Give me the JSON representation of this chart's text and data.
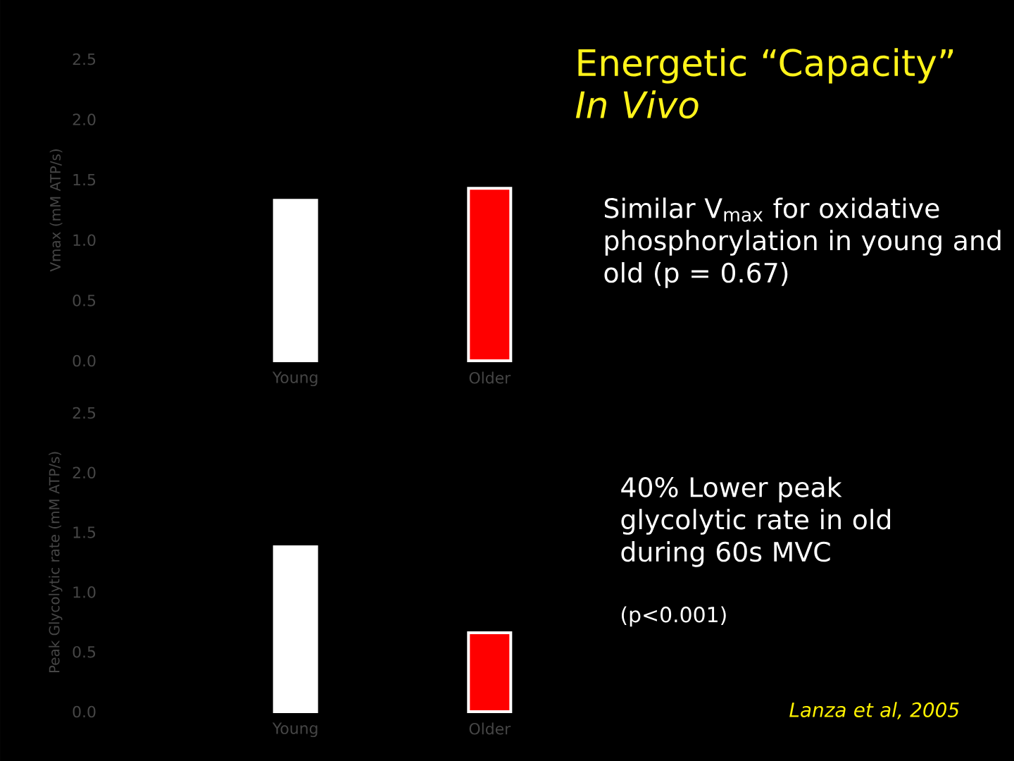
{
  "chart_data": [
    {
      "type": "bar",
      "title": "Energetic “Capacity” *In Vivo*",
      "ylabel": "Vmax (mM ATP/s)",
      "categories": [
        "Young",
        "Older"
      ],
      "values": [
        1.33,
        1.43
      ],
      "colors": [
        "#ffffff",
        "#ff0000"
      ],
      "ylim": [
        0,
        2.5
      ],
      "yticks": [
        {
          "value": 0,
          "label": "0.0"
        },
        {
          "value": 0.5,
          "label": "0.5"
        },
        {
          "value": 1,
          "label": "1.0"
        },
        {
          "value": 1.5,
          "label": "1.5"
        },
        {
          "value": 2,
          "label": "2.0"
        },
        {
          "value": 2.5,
          "label": "2.5"
        }
      ],
      "annotations": [
        "Similar V$_{max}$ for oxidative phosphorylation in young and old (p = 0.67)"
      ]
    },
    {
      "type": "bar",
      "ylabel": "Peak Glycolytic rate (mM ATP/s)",
      "categories": [
        "Young",
        "Older"
      ],
      "values": [
        1.38,
        0.66
      ],
      "colors": [
        "#ffffff",
        "#ff0000"
      ],
      "ylim": [
        0,
        2.5
      ],
      "yticks": [
        {
          "value": 0,
          "label": "0.0"
        },
        {
          "value": 0.5,
          "label": "0.5"
        },
        {
          "value": 1,
          "label": "1.0"
        },
        {
          "value": 1.5,
          "label": "1.5"
        },
        {
          "value": 2,
          "label": "2.0"
        },
        {
          "value": 2.5,
          "label": "2.5"
        }
      ],
      "annotations": [
        "40% Lower peak glycolytic rate in old during 60s MVC",
        "(p<0.001)",
        "*Lanza et al, 2005*"
      ]
    }
  ]
}
